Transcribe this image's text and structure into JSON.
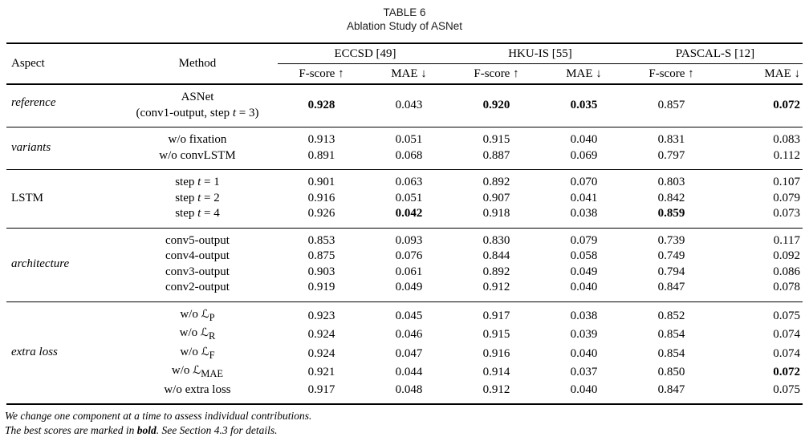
{
  "title": {
    "line1": "TABLE 6",
    "line2": "Ablation Study of ASNet"
  },
  "table": {
    "col_headers": {
      "aspect": "Aspect",
      "method": "Method"
    },
    "groups": [
      {
        "label": "ECCSD [49]"
      },
      {
        "label": "HKU-IS [55]"
      },
      {
        "label": "PASCAL-S [12]"
      }
    ],
    "metric_headers": [
      "F-score ↑",
      "MAE ↓",
      "F-score ↑",
      "MAE ↓",
      "F-score ↑",
      "MAE ↓"
    ],
    "sections": [
      {
        "aspect": "*reference*",
        "rows": [
          {
            "method": "ASNet\n(conv1-output, step *t* = 3)",
            "values": [
              "**0.928**",
              "0.043",
              "**0.920**",
              "**0.035**",
              "0.857",
              "**0.072**"
            ]
          }
        ]
      },
      {
        "aspect": "*variants*",
        "rows": [
          {
            "method": "w/o fixation",
            "values": [
              "0.913",
              "0.051",
              "0.915",
              "0.040",
              "0.831",
              "0.083"
            ]
          },
          {
            "method": "w/o convLSTM",
            "values": [
              "0.891",
              "0.068",
              "0.887",
              "0.069",
              "0.797",
              "0.112"
            ]
          }
        ]
      },
      {
        "aspect": "LSTM",
        "rows": [
          {
            "method": "step *t* = 1",
            "values": [
              "0.901",
              "0.063",
              "0.892",
              "0.070",
              "0.803",
              "0.107"
            ]
          },
          {
            "method": "step *t* = 2",
            "values": [
              "0.916",
              "0.051",
              "0.907",
              "0.041",
              "0.842",
              "0.079"
            ]
          },
          {
            "method": "step *t* = 4",
            "values": [
              "0.926",
              "**0.042**",
              "0.918",
              "0.038",
              "**0.859**",
              "0.073"
            ]
          }
        ]
      },
      {
        "aspect": "*architecture*",
        "rows": [
          {
            "method": "conv5-output",
            "values": [
              "0.853",
              "0.093",
              "0.830",
              "0.079",
              "0.739",
              "0.117"
            ]
          },
          {
            "method": "conv4-output",
            "values": [
              "0.875",
              "0.076",
              "0.844",
              "0.058",
              "0.749",
              "0.092"
            ]
          },
          {
            "method": "conv3-output",
            "values": [
              "0.903",
              "0.061",
              "0.892",
              "0.049",
              "0.794",
              "0.086"
            ]
          },
          {
            "method": "conv2-output",
            "values": [
              "0.919",
              "0.049",
              "0.912",
              "0.040",
              "0.847",
              "0.078"
            ]
          }
        ]
      },
      {
        "aspect": "*extra loss*",
        "rows": [
          {
            "method": "w/o ℒ_P_",
            "values": [
              "0.923",
              "0.045",
              "0.917",
              "0.038",
              "0.852",
              "0.075"
            ]
          },
          {
            "method": "w/o ℒ_R_",
            "values": [
              "0.924",
              "0.046",
              "0.915",
              "0.039",
              "0.854",
              "0.074"
            ]
          },
          {
            "method": "w/o ℒ_F_",
            "values": [
              "0.924",
              "0.047",
              "0.916",
              "0.040",
              "0.854",
              "0.074"
            ]
          },
          {
            "method": "w/o ℒ_MAE_",
            "values": [
              "0.921",
              "0.044",
              "0.914",
              "0.037",
              "0.850",
              "**0.072**"
            ]
          },
          {
            "method": "w/o extra loss",
            "values": [
              "0.917",
              "0.048",
              "0.912",
              "0.040",
              "0.847",
              "0.075"
            ]
          }
        ]
      }
    ]
  },
  "footnotes": [
    "We change one component at a time to assess individual contributions.",
    "The best scores are marked in **bold**. See Section 4.3 for details."
  ]
}
